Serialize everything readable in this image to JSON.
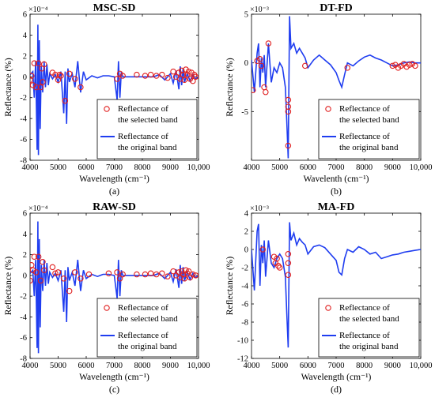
{
  "chart_data": [
    {
      "type": "line",
      "title": "MSC-SD",
      "subcaption": "(a)",
      "xlabel": "Wavelength  (cm⁻¹)",
      "ylabel": "Reflectance (%)",
      "exponent_label": "×10⁻⁴",
      "xlim": [
        4000,
        10000
      ],
      "ylim": [
        -8,
        6
      ],
      "xticks": [
        4000,
        5000,
        6000,
        7000,
        8000,
        9000,
        10000
      ],
      "xtick_labels": [
        "4000",
        "5000",
        "6000",
        "7000",
        "8000",
        "9000",
        "10,000"
      ],
      "yticks": [
        -8,
        -6,
        -4,
        -2,
        0,
        2,
        4,
        6
      ],
      "ytick_labels": [
        "-8",
        "-6",
        "-4",
        "-2",
        "0",
        "2",
        "4",
        "6"
      ],
      "legend": [
        "Reflectance of the selected band",
        "Reflectance of the original band"
      ],
      "legend_lines": [
        [
          "Reflectance of",
          "the selected band"
        ],
        [
          "Reflectance of",
          "the original band"
        ]
      ],
      "series": [
        {
          "name": "Reflectance of the original band",
          "style": "line",
          "x": [
            4000,
            4100,
            4150,
            4200,
            4250,
            4280,
            4300,
            4330,
            4360,
            4400,
            4450,
            4500,
            4550,
            4600,
            4650,
            4700,
            4800,
            4900,
            5000,
            5100,
            5200,
            5250,
            5300,
            5350,
            5400,
            5500,
            5600,
            5700,
            5800,
            5900,
            6000,
            6200,
            6400,
            6600,
            6800,
            7000,
            7100,
            7150,
            7200,
            7250,
            7300,
            7500,
            7800,
            8000,
            8200,
            8400,
            8600,
            8800,
            9000,
            9100,
            9200,
            9300,
            9350,
            9400,
            9450,
            9500,
            9600,
            9700,
            9800,
            9900,
            10000
          ],
          "y": [
            0.2,
            0.5,
            -2.0,
            1.5,
            -7.0,
            5.0,
            -7.5,
            3.5,
            -5.0,
            1.0,
            -1.5,
            1.5,
            -1.0,
            1.2,
            -0.8,
            0.3,
            -0.2,
            0.2,
            -0.5,
            0.5,
            -3.5,
            0.5,
            -4.5,
            0.8,
            -0.5,
            0.3,
            -1.0,
            1.5,
            -1.5,
            0.5,
            -0.3,
            0.1,
            -0.1,
            0.1,
            0.1,
            0.0,
            -2.2,
            1.5,
            -2.0,
            0.5,
            0.0,
            0.0,
            0.0,
            0.0,
            0.0,
            0.0,
            0.2,
            -0.3,
            0.3,
            -0.6,
            0.6,
            -1.2,
            1.0,
            -0.8,
            0.8,
            -0.5,
            0.3,
            -0.4,
            0.2,
            -0.2,
            0.0
          ],
          "color": "#1f3df0"
        },
        {
          "name": "Reflectance of the selected band",
          "style": "markers",
          "x": [
            4000,
            4050,
            4100,
            4150,
            4220,
            4300,
            4380,
            4420,
            4450,
            4500,
            4800,
            4900,
            5000,
            5050,
            5100,
            5250,
            5400,
            5600,
            5800,
            7100,
            7200,
            7300,
            7800,
            8100,
            8300,
            8500,
            8700,
            8900,
            9100,
            9200,
            9300,
            9350,
            9400,
            9450,
            9500,
            9550,
            9600,
            9650,
            9700,
            9750,
            9800,
            9850,
            9900
          ],
          "y": [
            -0.3,
            0.1,
            -0.8,
            1.3,
            -1.0,
            1.3,
            -1.0,
            0.8,
            -0.5,
            1.2,
            0.4,
            0.2,
            -0.3,
            0.2,
            0.1,
            -2.3,
            0.3,
            -0.2,
            -1.0,
            -0.2,
            0.3,
            0.1,
            0.2,
            0.1,
            0.2,
            0.1,
            0.2,
            -0.1,
            0.5,
            0.0,
            0.4,
            -0.2,
            0.6,
            0.2,
            -0.3,
            0.7,
            0.2,
            0.5,
            -0.2,
            0.4,
            -0.4,
            0.2,
            0.0
          ],
          "color": "#e02020"
        }
      ]
    },
    {
      "type": "line",
      "title": "DT-FD",
      "subcaption": "(b)",
      "xlabel": "Wavelenth  (cm⁻¹)",
      "ylabel": "Reflectance (%)",
      "exponent_label": "×10⁻³",
      "xlim": [
        4000,
        10000
      ],
      "ylim": [
        -10,
        5
      ],
      "xticks": [
        4000,
        5000,
        6000,
        7000,
        8000,
        9000,
        10000
      ],
      "xtick_labels": [
        "4000",
        "5000",
        "6000",
        "7000",
        "8000",
        "9000",
        "10,000"
      ],
      "yticks": [
        -5,
        0,
        5
      ],
      "ytick_labels": [
        "-5",
        "0",
        "5"
      ],
      "legend": [
        "Reflectance of the selected band",
        "Reflectance of the original band"
      ],
      "legend_lines": [
        [
          "Reflectance of",
          "the selected band"
        ],
        [
          "Reflectance of",
          "the original band"
        ]
      ],
      "series": [
        {
          "name": "Reflectance of the original band",
          "style": "line",
          "x": [
            4000,
            4100,
            4200,
            4250,
            4300,
            4350,
            4400,
            4450,
            4500,
            4600,
            4700,
            4800,
            4900,
            5000,
            5100,
            5200,
            5250,
            5300,
            5350,
            5400,
            5500,
            5600,
            5700,
            5800,
            5900,
            6000,
            6200,
            6400,
            6600,
            6800,
            7000,
            7100,
            7200,
            7300,
            7400,
            7600,
            7800,
            8000,
            8200,
            8400,
            8600,
            8800,
            9000,
            9200,
            9400,
            9600,
            9800,
            10000
          ],
          "y": [
            0.3,
            -3.0,
            1.0,
            2.0,
            -2.5,
            0.5,
            -1.0,
            0.8,
            -2.5,
            2.0,
            -2.0,
            -0.5,
            -1.0,
            0.0,
            -0.5,
            -2.5,
            -6.0,
            -9.8,
            4.8,
            1.5,
            2.0,
            1.0,
            1.5,
            1.0,
            0.5,
            -0.5,
            0.3,
            0.8,
            0.3,
            -0.2,
            -1.0,
            -1.8,
            -2.5,
            -1.2,
            0.0,
            -0.3,
            0.2,
            0.6,
            0.8,
            0.5,
            0.3,
            0.0,
            -0.3,
            -0.2,
            0.0,
            0.1,
            0.0,
            0.0
          ],
          "color": "#1f3df0"
        },
        {
          "name": "Reflectance of the selected band",
          "style": "markers",
          "x": [
            4050,
            4200,
            4300,
            4350,
            4450,
            4500,
            4600,
            5300,
            5300,
            5300,
            5300,
            5900,
            7400,
            9000,
            9100,
            9200,
            9300,
            9400,
            9500,
            9600,
            9700,
            9800
          ],
          "y": [
            -2.8,
            0.2,
            0.4,
            -0.3,
            -2.5,
            -3.0,
            2.0,
            -3.8,
            -4.5,
            -5.0,
            -8.5,
            -0.3,
            -0.5,
            -0.3,
            -0.2,
            -0.5,
            -0.3,
            -0.1,
            -0.4,
            -0.2,
            -0.1,
            -0.3
          ],
          "color": "#e02020"
        }
      ]
    },
    {
      "type": "line",
      "title": "RAW-SD",
      "subcaption": "(c)",
      "xlabel": "Wavelength  (cm⁻¹)",
      "ylabel": "Reflectance (%)",
      "exponent_label": "×10⁻⁴",
      "xlim": [
        4000,
        10000
      ],
      "ylim": [
        -8,
        6
      ],
      "xticks": [
        4000,
        5000,
        6000,
        7000,
        8000,
        9000,
        10000
      ],
      "xtick_labels": [
        "4000",
        "5000",
        "6000",
        "7000",
        "8000",
        "9000",
        "10,000"
      ],
      "yticks": [
        -8,
        -6,
        -4,
        -2,
        0,
        2,
        4,
        6
      ],
      "ytick_labels": [
        "-8",
        "-6",
        "-4",
        "-2",
        "0",
        "2",
        "4",
        "6"
      ],
      "legend": [
        "Reflectance of the selected band",
        "Reflectance of the original band"
      ],
      "legend_lines": [
        [
          "Reflectance of",
          "the selected band"
        ],
        [
          "Reflectance of",
          "the original band"
        ]
      ],
      "series": [
        {
          "name": "Reflectance of the original band",
          "style": "line",
          "x": [
            4000,
            4100,
            4150,
            4200,
            4250,
            4280,
            4300,
            4330,
            4360,
            4400,
            4450,
            4500,
            4550,
            4600,
            4650,
            4700,
            4800,
            4900,
            5000,
            5100,
            5200,
            5250,
            5300,
            5350,
            5400,
            5500,
            5600,
            5700,
            5800,
            5900,
            6000,
            6200,
            6400,
            6600,
            6800,
            7000,
            7100,
            7150,
            7200,
            7250,
            7300,
            7500,
            7800,
            8000,
            8200,
            8400,
            8600,
            8800,
            9000,
            9100,
            9200,
            9300,
            9350,
            9400,
            9450,
            9500,
            9600,
            9700,
            9800,
            9900,
            10000
          ],
          "y": [
            0.2,
            0.5,
            -2.0,
            1.5,
            -7.0,
            5.2,
            -7.5,
            3.5,
            -5.0,
            1.0,
            -1.5,
            1.5,
            -1.0,
            1.2,
            -0.8,
            0.3,
            -0.2,
            0.2,
            -0.5,
            0.5,
            -3.5,
            0.5,
            -4.5,
            0.8,
            -0.5,
            0.3,
            -1.0,
            1.5,
            -1.5,
            0.5,
            -0.3,
            0.1,
            -0.1,
            0.1,
            0.1,
            0.0,
            -2.2,
            1.5,
            -2.0,
            0.5,
            0.0,
            0.0,
            0.0,
            0.0,
            0.0,
            0.0,
            0.2,
            -0.3,
            0.3,
            -0.6,
            0.6,
            -1.2,
            1.0,
            -0.8,
            0.8,
            -0.5,
            0.3,
            -0.4,
            0.2,
            -0.2,
            0.0
          ],
          "color": "#1f3df0"
        },
        {
          "name": "Reflectance of the selected band",
          "style": "markers",
          "x": [
            4000,
            4050,
            4100,
            4150,
            4220,
            4300,
            4380,
            4450,
            4500,
            4800,
            4900,
            5000,
            5200,
            5400,
            5600,
            5800,
            6100,
            6800,
            7100,
            7200,
            7300,
            7800,
            8100,
            8300,
            8500,
            8700,
            8900,
            9100,
            9200,
            9300,
            9350,
            9400,
            9450,
            9500,
            9550,
            9600,
            9650,
            9700,
            9800,
            9900
          ],
          "y": [
            -0.5,
            1.0,
            0.5,
            1.8,
            0.3,
            1.8,
            -0.5,
            1.3,
            0.5,
            0.8,
            0.2,
            0.3,
            -0.3,
            -1.5,
            0.3,
            -0.3,
            0.1,
            0.2,
            0.3,
            -0.3,
            0.1,
            0.1,
            0.1,
            0.2,
            0.1,
            0.2,
            -0.1,
            0.4,
            0.0,
            0.3,
            -0.2,
            0.4,
            0.1,
            -0.3,
            0.5,
            0.2,
            0.4,
            -0.2,
            0.1,
            0.0
          ],
          "color": "#e02020"
        }
      ]
    },
    {
      "type": "line",
      "title": "MA-FD",
      "subcaption": "(d)",
      "xlabel": "Wavelength  (cm⁻¹)",
      "ylabel": "Reflectance (%)",
      "exponent_label": "×10⁻³",
      "xlim": [
        4000,
        10000
      ],
      "ylim": [
        -12,
        4
      ],
      "xticks": [
        4000,
        5000,
        6000,
        7000,
        8000,
        9000,
        10000
      ],
      "xtick_labels": [
        "4000",
        "5000",
        "6000",
        "7000",
        "8000",
        "9000",
        "10,000"
      ],
      "yticks": [
        -12,
        -10,
        -8,
        -6,
        -4,
        -2,
        0,
        2,
        4
      ],
      "ytick_labels": [
        "-12",
        "-10",
        "-8",
        "-6",
        "-4",
        "-2",
        "0",
        "2",
        "4"
      ],
      "legend": [
        "Reflectance of the selected band",
        "Reflectance of the original band"
      ],
      "legend_lines": [
        [
          "Reflectance of",
          "the selected band"
        ],
        [
          "Reflectance of",
          "the original band"
        ]
      ],
      "series": [
        {
          "name": "Reflectance of the original band",
          "style": "line",
          "x": [
            4000,
            4100,
            4200,
            4250,
            4300,
            4350,
            4400,
            4450,
            4500,
            4600,
            4700,
            4800,
            4900,
            5000,
            5100,
            5200,
            5250,
            5300,
            5350,
            5400,
            5500,
            5600,
            5700,
            5800,
            5900,
            6000,
            6200,
            6400,
            6600,
            6800,
            7000,
            7100,
            7200,
            7300,
            7400,
            7600,
            7800,
            8000,
            8200,
            8400,
            8600,
            8800,
            9000,
            9200,
            9400,
            9600,
            9800,
            10000
          ],
          "y": [
            0.0,
            -4.5,
            2.0,
            2.8,
            -4.0,
            0.5,
            -1.5,
            1.0,
            -3.0,
            1.0,
            -1.5,
            -2.0,
            -1.0,
            -0.5,
            -1.0,
            -3.0,
            -7.0,
            -10.8,
            3.0,
            1.0,
            1.8,
            0.5,
            1.2,
            0.8,
            0.5,
            -0.5,
            0.3,
            0.5,
            0.2,
            -0.5,
            -1.2,
            -2.5,
            -2.8,
            -1.0,
            0.0,
            -0.3,
            0.3,
            0.0,
            -0.5,
            -0.3,
            -1.0,
            -0.8,
            -0.6,
            -0.5,
            -0.3,
            -0.2,
            -0.1,
            0.0
          ],
          "color": "#1f3df0"
        },
        {
          "name": "Reflectance of the selected band",
          "style": "markers",
          "x": [
            4400,
            4800,
            4850,
            4900,
            4950,
            5000,
            5300,
            5300,
            5300
          ],
          "y": [
            0.0,
            -0.8,
            -1.5,
            -1.0,
            -1.8,
            -2.0,
            -0.5,
            -1.5,
            -2.8
          ],
          "color": "#e02020"
        }
      ]
    }
  ]
}
